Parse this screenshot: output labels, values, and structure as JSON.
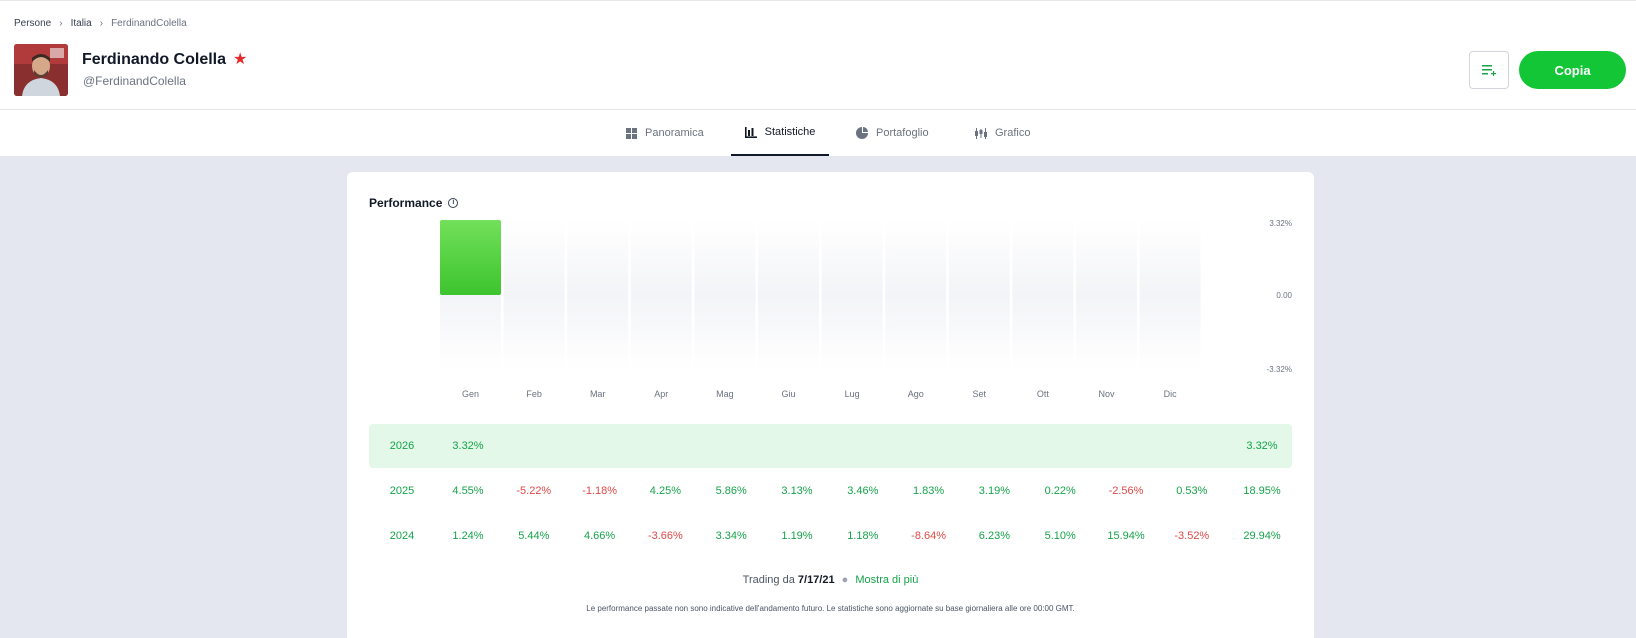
{
  "breadcrumb": {
    "items": [
      "Persone",
      "Italia",
      "FerdinandColella"
    ]
  },
  "profile": {
    "name": "Ferdinando Colella",
    "handle": "@FerdinandColella"
  },
  "actions": {
    "copy_label": "Copia"
  },
  "tabs": [
    {
      "label": "Panoramica",
      "icon": "grid-icon"
    },
    {
      "label": "Statistiche",
      "icon": "bar-chart-icon",
      "active": true
    },
    {
      "label": "Portafoglio",
      "icon": "pie-chart-icon"
    },
    {
      "label": "Grafico",
      "icon": "candlestick-icon"
    }
  ],
  "performance": {
    "title": "Performance"
  },
  "chart_data": {
    "type": "bar",
    "categories": [
      "Gen",
      "Feb",
      "Mar",
      "Apr",
      "Mag",
      "Giu",
      "Lug",
      "Ago",
      "Set",
      "Ott",
      "Nov",
      "Dic"
    ],
    "values": [
      3.32,
      null,
      null,
      null,
      null,
      null,
      null,
      null,
      null,
      null,
      null,
      null
    ],
    "y_ticks": [
      "3.32%",
      "0.00",
      "-3.32%"
    ],
    "ylim": [
      -3.32,
      3.32
    ],
    "bar_color": "#4cd137"
  },
  "table": [
    {
      "year": "2026",
      "months": [
        "3.32%",
        "",
        "",
        "",
        "",
        "",
        "",
        "",
        "",
        "",
        "",
        ""
      ],
      "total": "3.32%",
      "highlight": true
    },
    {
      "year": "2025",
      "months": [
        "4.55%",
        "-5.22%",
        "-1.18%",
        "4.25%",
        "5.86%",
        "3.13%",
        "3.46%",
        "1.83%",
        "3.19%",
        "0.22%",
        "-2.56%",
        "0.53%"
      ],
      "total": "18.95%"
    },
    {
      "year": "2024",
      "months": [
        "1.24%",
        "5.44%",
        "4.66%",
        "-3.66%",
        "3.34%",
        "1.19%",
        "1.18%",
        "-8.64%",
        "6.23%",
        "5.10%",
        "15.94%",
        "-3.52%"
      ],
      "total": "29.94%"
    }
  ],
  "footer": {
    "trading_prefix": "Trading da",
    "trading_date": "7/17/21",
    "more_link": "Mostra di più",
    "disclaimer": "Le performance passate non sono indicative dell'andamento futuro. Le statistiche sono aggiornate su base giornaliera alle ore 00:00 GMT."
  },
  "colors": {
    "accent": "#13c636",
    "positive": "#16a34a",
    "negative": "#e04848"
  }
}
